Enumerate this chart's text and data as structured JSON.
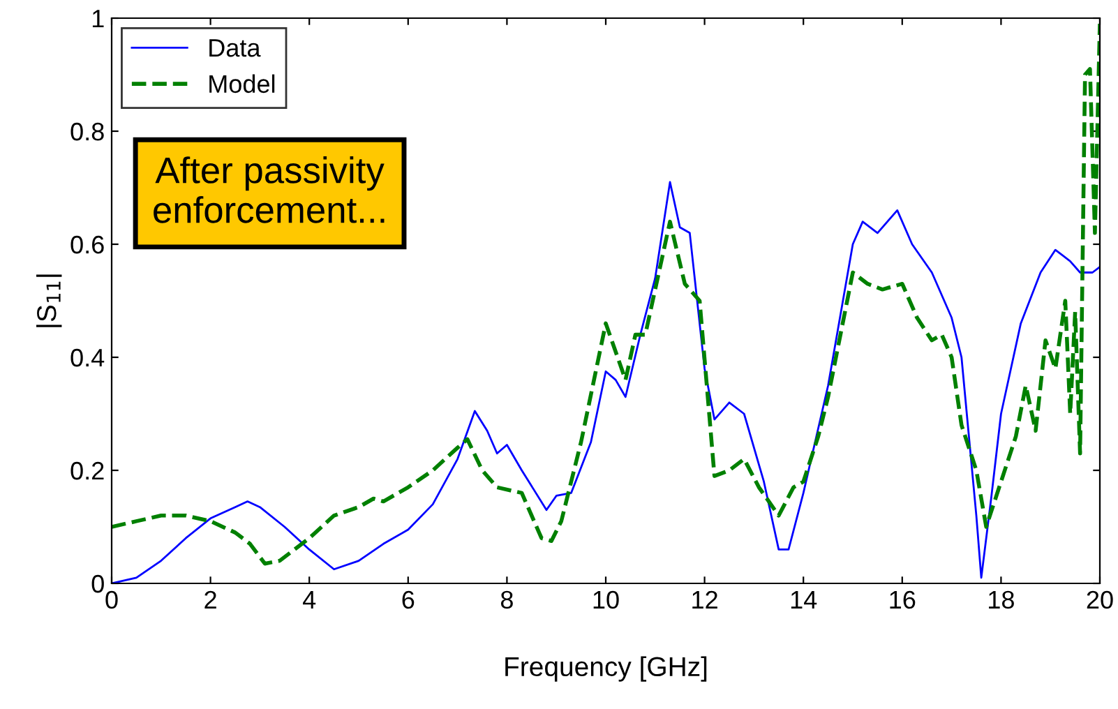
{
  "chart_data": {
    "type": "line",
    "xlabel": "Frequency [GHz]",
    "ylabel": "|S$_{11}$|",
    "annotations": [
      "After passivity\nenforcement..."
    ],
    "xlim": [
      0,
      20
    ],
    "ylim": [
      0,
      1
    ],
    "xticks": [
      0,
      2,
      4,
      6,
      8,
      10,
      12,
      14,
      16,
      18,
      20
    ],
    "yticks": [
      0,
      0.2,
      0.4,
      0.6,
      0.8,
      1
    ],
    "grid": false,
    "legend": "top left",
    "series": [
      {
        "name": "Data",
        "color": "#0000ff",
        "line_style": "solid",
        "x": [
          0,
          0.5,
          1,
          1.5,
          2,
          2.5,
          2.75,
          3,
          3.5,
          4,
          4.5,
          5,
          5.5,
          6,
          6.5,
          7,
          7.35,
          7.6,
          7.8,
          8,
          8.3,
          8.8,
          9,
          9.3,
          9.7,
          10,
          10.2,
          10.4,
          10.7,
          11,
          11.3,
          11.5,
          11.7,
          12,
          12.2,
          12.5,
          12.8,
          13.2,
          13.5,
          13.7,
          14,
          14.5,
          15,
          15.2,
          15.5,
          15.9,
          16.2,
          16.6,
          17,
          17.2,
          17.5,
          17.6,
          17.8,
          18,
          18.4,
          18.8,
          19.1,
          19.4,
          19.6,
          19.85,
          20
        ],
        "values": [
          0.0,
          0.01,
          0.04,
          0.08,
          0.115,
          0.135,
          0.145,
          0.135,
          0.1,
          0.06,
          0.025,
          0.04,
          0.07,
          0.095,
          0.14,
          0.22,
          0.305,
          0.27,
          0.23,
          0.245,
          0.2,
          0.13,
          0.155,
          0.16,
          0.25,
          0.375,
          0.36,
          0.33,
          0.44,
          0.54,
          0.71,
          0.63,
          0.62,
          0.38,
          0.29,
          0.32,
          0.3,
          0.18,
          0.06,
          0.06,
          0.16,
          0.35,
          0.6,
          0.64,
          0.62,
          0.66,
          0.6,
          0.55,
          0.47,
          0.4,
          0.12,
          0.01,
          0.15,
          0.3,
          0.46,
          0.55,
          0.59,
          0.57,
          0.55,
          0.55,
          0.56
        ]
      },
      {
        "name": "Model",
        "color": "#008000",
        "line_style": "dashed",
        "x": [
          0,
          0.5,
          1,
          1.5,
          2,
          2.5,
          2.8,
          3.1,
          3.4,
          4,
          4.5,
          5,
          5.3,
          5.5,
          6,
          6.5,
          7,
          7.2,
          7.5,
          7.8,
          8.3,
          8.7,
          8.9,
          9.1,
          9.5,
          10,
          10.4,
          10.6,
          10.8,
          11.3,
          11.6,
          11.9,
          12.2,
          12.5,
          12.8,
          13.1,
          13.5,
          13.8,
          14,
          14.3,
          14.5,
          15,
          15.3,
          15.6,
          16,
          16.3,
          16.6,
          16.8,
          17,
          17.2,
          17.5,
          17.7,
          18,
          18.3,
          18.5,
          18.7,
          18.9,
          19.1,
          19.3,
          19.4,
          19.5,
          19.6,
          19.7,
          19.8,
          19.9,
          20
        ],
        "values": [
          0.1,
          0.11,
          0.12,
          0.12,
          0.11,
          0.09,
          0.07,
          0.035,
          0.04,
          0.08,
          0.12,
          0.135,
          0.15,
          0.145,
          0.17,
          0.2,
          0.24,
          0.255,
          0.2,
          0.17,
          0.16,
          0.08,
          0.075,
          0.11,
          0.25,
          0.46,
          0.36,
          0.44,
          0.44,
          0.64,
          0.53,
          0.5,
          0.19,
          0.2,
          0.22,
          0.17,
          0.12,
          0.17,
          0.18,
          0.26,
          0.33,
          0.55,
          0.53,
          0.52,
          0.53,
          0.47,
          0.43,
          0.44,
          0.4,
          0.28,
          0.2,
          0.1,
          0.18,
          0.26,
          0.35,
          0.27,
          0.43,
          0.38,
          0.5,
          0.3,
          0.48,
          0.23,
          0.9,
          0.91,
          0.62,
          0.99
        ]
      }
    ]
  }
}
